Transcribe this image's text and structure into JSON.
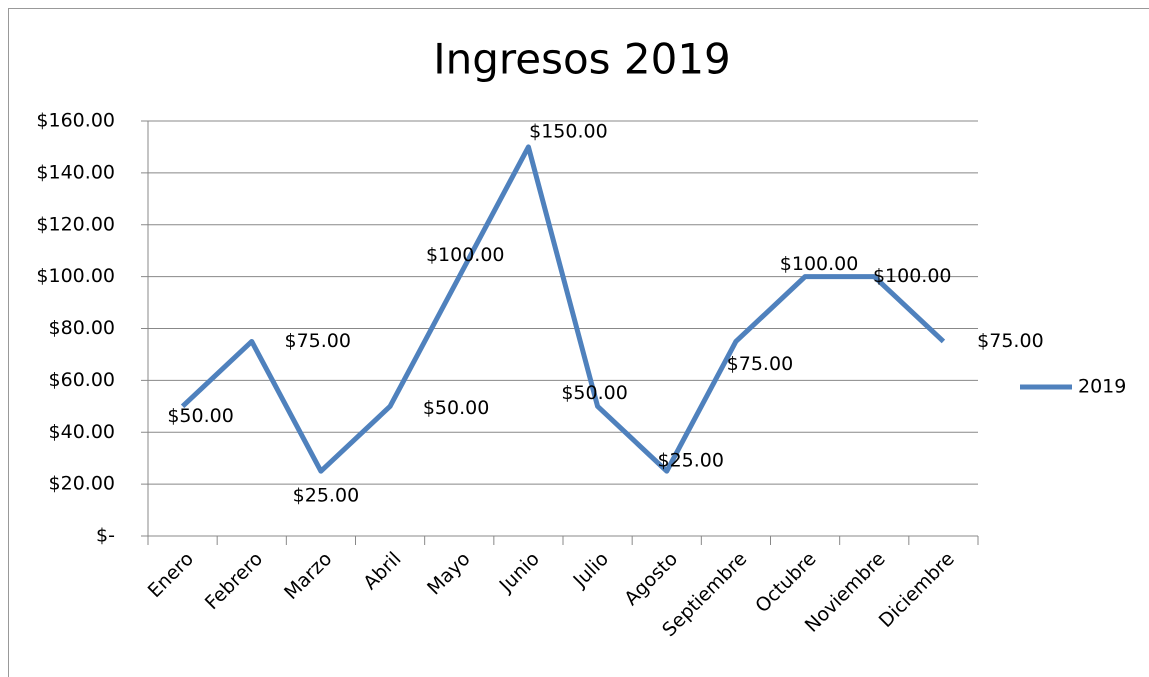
{
  "chart_data": {
    "type": "line",
    "title": "Ingresos 2019",
    "categories": [
      "Enero",
      "Febrero",
      "Marzo",
      "Abril",
      "Mayo",
      "Junio",
      "Julio",
      "Agosto",
      "Septiembre",
      "Octubre",
      "Noviembre",
      "Diciembre"
    ],
    "series": [
      {
        "name": "2019",
        "color": "#4f81bd",
        "values": [
          50,
          75,
          25,
          50,
          100,
          150,
          50,
          25,
          75,
          100,
          100,
          75
        ],
        "value_labels": [
          "$50.00",
          "$75.00",
          "$25.00",
          "$50.00",
          "$100.00",
          "$150.00",
          "$50.00",
          "$25.00",
          "$75.00",
          "$100.00",
          "$100.00",
          "$75.00"
        ]
      }
    ],
    "ylim": [
      0,
      160
    ],
    "yticks": [
      {
        "value": 0,
        "label": "$-"
      },
      {
        "value": 20,
        "label": "$20.00"
      },
      {
        "value": 40,
        "label": "$40.00"
      },
      {
        "value": 60,
        "label": "$60.00"
      },
      {
        "value": 80,
        "label": "$80.00"
      },
      {
        "value": 100,
        "label": "$100.00"
      },
      {
        "value": 120,
        "label": "$120.00"
      },
      {
        "value": 140,
        "label": "$140.00"
      },
      {
        "value": 160,
        "label": "$160.00"
      }
    ],
    "grid": true,
    "legend": "right"
  }
}
